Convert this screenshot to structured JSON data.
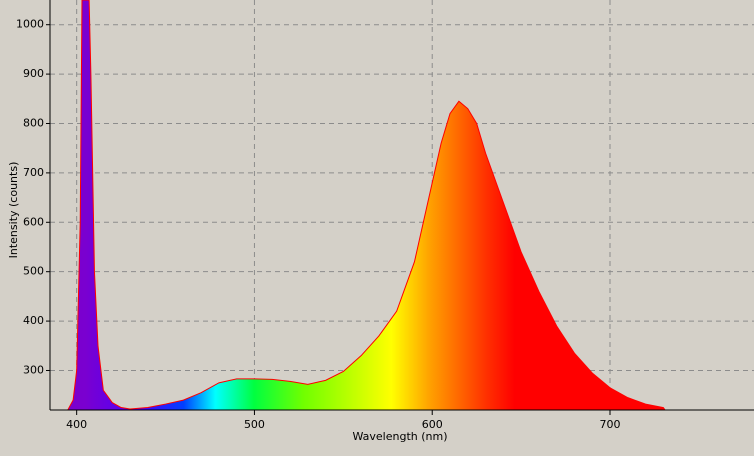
{
  "chart_data": {
    "type": "area",
    "x_label": "Wavelength (nm)",
    "y_label": "Intensity (counts)",
    "x": [
      395,
      398,
      400,
      402,
      403,
      405,
      407,
      408,
      410,
      412,
      415,
      420,
      425,
      430,
      440,
      450,
      460,
      470,
      480,
      490,
      500,
      510,
      520,
      530,
      540,
      550,
      560,
      570,
      580,
      590,
      595,
      600,
      605,
      610,
      615,
      620,
      625,
      630,
      640,
      650,
      660,
      670,
      680,
      690,
      700,
      710,
      720,
      730,
      731
    ],
    "values": [
      220,
      240,
      300,
      600,
      1050,
      1050,
      1050,
      900,
      500,
      350,
      260,
      235,
      225,
      222,
      225,
      232,
      240,
      255,
      275,
      283,
      283,
      282,
      278,
      272,
      280,
      298,
      330,
      370,
      420,
      520,
      600,
      680,
      760,
      820,
      845,
      830,
      800,
      740,
      640,
      540,
      460,
      390,
      335,
      295,
      265,
      245,
      232,
      225,
      220
    ],
    "line_color": "#ff0000",
    "xlim": [
      385,
      781
    ],
    "ylim": [
      220,
      1050
    ],
    "xticks": [
      400,
      500,
      600,
      700
    ],
    "yticks": [
      300,
      400,
      500,
      600,
      700,
      800,
      900,
      1000
    ],
    "grid": true
  }
}
